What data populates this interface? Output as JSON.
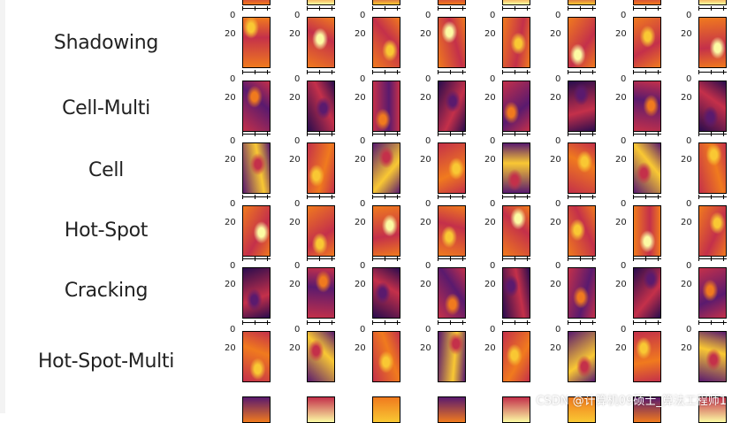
{
  "classes": [
    {
      "label": "Shadowing"
    },
    {
      "label": "Cell-Multi"
    },
    {
      "label": "Cell"
    },
    {
      "label": "Hot-Spot"
    },
    {
      "label": "Cracking"
    },
    {
      "label": "Hot-Spot-Multi"
    }
  ],
  "axis": {
    "y_tick_zero": "0",
    "y_tick_mid": "20"
  },
  "watermark": "CSDN @计算机09硕士_算法工程师1",
  "colormap": "inferno",
  "colors": {
    "dark": "#2a0c4e",
    "purple": "#5a1a6e",
    "red": "#c4304a",
    "orange": "#f07a1e",
    "yellow": "#f9c833",
    "bright": "#fcfba4"
  }
}
